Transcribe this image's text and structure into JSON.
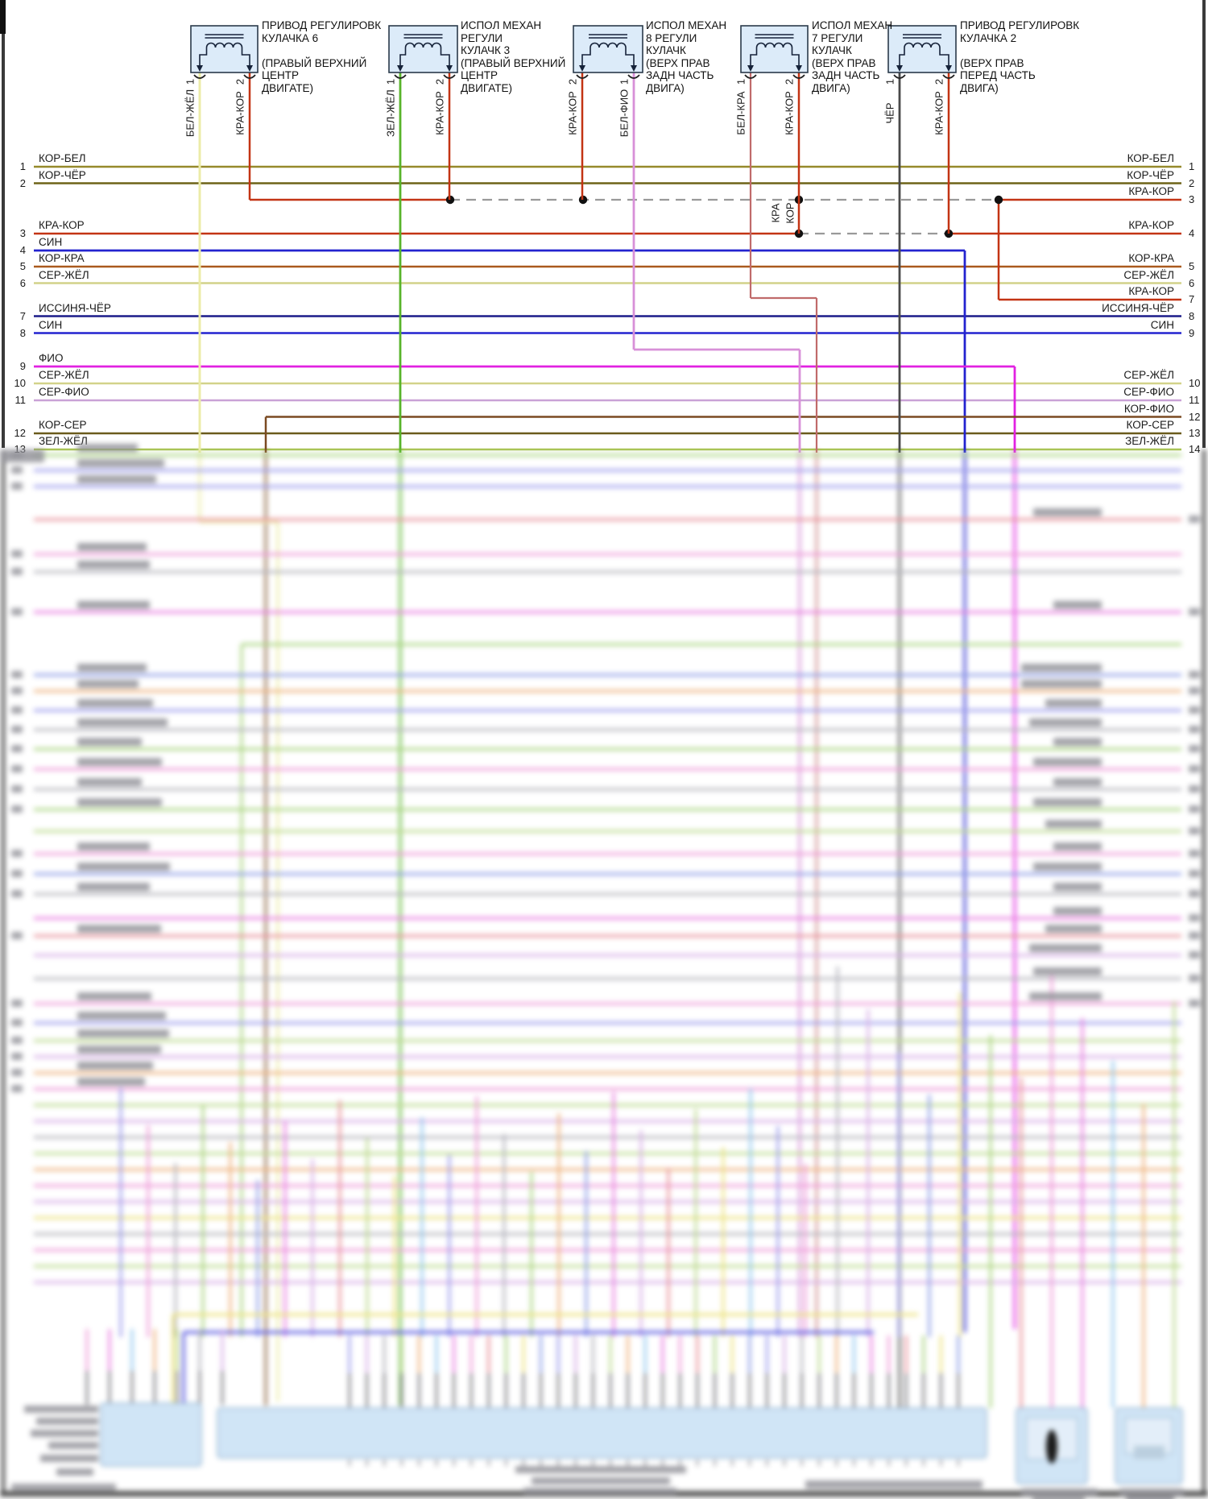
{
  "page": {
    "background": "#ffffff",
    "border_color": "#3a3a3a"
  },
  "connectors": [
    {
      "title_lines": [
        "ПРИВОД РЕГУЛИРОВК",
        "КУЛАЧКА 6",
        "",
        "(ПРАВЫЙ ВЕРХНИЙ",
        "ЦЕНТР",
        "ДВИГАТЕ)"
      ],
      "pins": [
        {
          "num": "1",
          "wire": "БЕЛ-ЖЁЛ"
        },
        {
          "num": "2",
          "wire": "КРА-КОР"
        }
      ]
    },
    {
      "title_lines": [
        "ИСПОЛ МЕХАН",
        "РЕГУЛИ",
        "КУЛАЧК 3",
        "(ПРАВЫЙ ВЕРХНИЙ",
        "ЦЕНТР",
        "ДВИГАТЕ)"
      ],
      "pins": [
        {
          "num": "1",
          "wire": "ЗЕЛ-ЖЁЛ"
        },
        {
          "num": "2",
          "wire": "КРА-КОР"
        }
      ]
    },
    {
      "title_lines": [
        "ИСПОЛ МЕХАН",
        "8 РЕГУЛИ",
        "КУЛАЧК",
        "(ВЕРХ ПРАВ",
        "ЗАДН ЧАСТЬ",
        "ДВИГА)"
      ],
      "pins": [
        {
          "num": "2",
          "wire": "КРА-КОР"
        },
        {
          "num": "1",
          "wire": "БЕЛ-ФИО"
        }
      ]
    },
    {
      "title_lines": [
        "ИСПОЛ МЕХАН",
        "7 РЕГУЛИ",
        "КУЛАЧК",
        "(ВЕРХ ПРАВ",
        "ЗАДН ЧАСТЬ",
        "ДВИГА)"
      ],
      "pins": [
        {
          "num": "1",
          "wire": "БЕЛ-КРА"
        },
        {
          "num": "2",
          "wire": "КРА-КОР"
        }
      ]
    },
    {
      "title_lines": [
        "ПРИВОД РЕГУЛИРОВК",
        "КУЛАЧКА 2",
        "",
        "(ВЕРХ ПРАВ",
        "ПЕРЕД ЧАСТЬ",
        "ДВИГА)"
      ],
      "pins": [
        {
          "num": "1",
          "wire": "ЧЁР"
        },
        {
          "num": "2",
          "wire": "КРА-КОР"
        }
      ]
    }
  ],
  "left_rows": [
    {
      "num": "1",
      "label": "КОР-БЕЛ",
      "color": "#968a2b"
    },
    {
      "num": "2",
      "label": "КОР-ЧЁР",
      "color": "#6e6418"
    },
    {
      "num": "3",
      "label": "КРА-КОР",
      "color": "#c33414"
    },
    {
      "num": "4",
      "label": "СИН",
      "color": "#2323cf"
    },
    {
      "num": "5",
      "label": "КОР-КРА",
      "color": "#aa5a1e"
    },
    {
      "num": "6",
      "label": "СЕР-ЖЁЛ",
      "color": "#d2d28a"
    },
    {
      "num": "7",
      "label": "ИССИНЯ-ЧЁР",
      "color": "#1c1c8a"
    },
    {
      "num": "8",
      "label": "СИН",
      "color": "#2323cf"
    },
    {
      "num": "9",
      "label": "ФИО",
      "color": "#e121e1"
    },
    {
      "num": "10",
      "label": "СЕР-ЖЁЛ",
      "color": "#d2d28a"
    },
    {
      "num": "11",
      "label": "СЕР-ФИО",
      "color": "#c9a2d6"
    },
    {
      "num": "12",
      "label": "КОР-СЕР",
      "color": "#6b5b1c"
    },
    {
      "num": "13",
      "label": "ЗЕЛ-ЖЁЛ",
      "color": "#a9c455"
    }
  ],
  "right_rows": [
    {
      "num": "1",
      "label": "КОР-БЕЛ",
      "color": "#968a2b"
    },
    {
      "num": "2",
      "label": "КОР-ЧЁР",
      "color": "#6e6418"
    },
    {
      "num": "3",
      "label": "КРА-КОР",
      "color": "#c33414"
    },
    {
      "num": "4",
      "label": "КРА-КОР",
      "color": "#c33414"
    },
    {
      "num": "5",
      "label": "КОР-КРА",
      "color": "#aa5a1e"
    },
    {
      "num": "6",
      "label": "СЕР-ЖЁЛ",
      "color": "#d2d28a"
    },
    {
      "num": "7",
      "label": "КРА-КОР",
      "color": "#c33414"
    },
    {
      "num": "8",
      "label": "ИССИНЯ-ЧЁР",
      "color": "#1c1c8a"
    },
    {
      "num": "9",
      "label": "СИН",
      "color": "#2323cf"
    },
    {
      "num": "10",
      "label": "СЕР-ЖЁЛ",
      "color": "#d2d28a"
    },
    {
      "num": "11",
      "label": "СЕР-ФИО",
      "color": "#c9a2d6"
    },
    {
      "num": "12",
      "label": "КОР-ФИО",
      "color": "#7a4a22"
    },
    {
      "num": "13",
      "label": "КОР-СЕР",
      "color": "#6b5b1c"
    },
    {
      "num": "14",
      "label": "ЗЕЛ-ЖЁЛ",
      "color": "#a9c455"
    }
  ],
  "inline_wire_label": {
    "line1": "КРА",
    "line2": "КОР"
  },
  "wire_colors": {
    "БЕЛ-ЖЁЛ": "#ececa8",
    "КРА-КОР": "#c33414",
    "ЗЕЛ-ЖЁЛ": "#58b42a",
    "БЕЛ-ФИО": "#d890d8",
    "БЕЛ-КРА": "#c06a6a",
    "ЧЁР": "#4a4a4a",
    "СИН": "#2323cf",
    "ФИО": "#e121e1",
    "КОР-ФИО": "#7a4a22",
    "dash": "#999999",
    "dot": "#111111",
    "connector_fill": "#dcebf9",
    "connector_stroke": "#2a3a4a"
  },
  "blur_region": {
    "palette": [
      "#9b9bec",
      "#ee9ad8",
      "#b4b4bc",
      "#a9d47f",
      "#eeb27d",
      "#8d9de6",
      "#e87ee0",
      "#d7aee6",
      "#e89098",
      "#bcd98e",
      "#ece27f",
      "#90c7ee"
    ],
    "rows": [
      [
        565,
        3,
        1,
        0
      ],
      [
        584,
        0,
        1,
        0
      ],
      [
        604,
        0,
        1,
        0
      ],
      [
        645,
        8,
        0,
        1
      ],
      [
        688,
        1,
        1,
        0
      ],
      [
        710,
        2,
        1,
        0
      ],
      [
        760,
        6,
        1,
        1
      ],
      [
        800,
        3,
        0,
        0
      ],
      [
        838,
        5,
        1,
        1
      ],
      [
        858,
        4,
        1,
        1
      ],
      [
        882,
        0,
        1,
        1
      ],
      [
        906,
        2,
        1,
        1
      ],
      [
        930,
        3,
        1,
        1
      ],
      [
        955,
        1,
        1,
        1
      ],
      [
        980,
        2,
        1,
        1
      ],
      [
        1005,
        3,
        1,
        1
      ],
      [
        1032,
        9,
        0,
        1
      ],
      [
        1060,
        1,
        1,
        1
      ],
      [
        1085,
        5,
        1,
        1
      ],
      [
        1110,
        2,
        1,
        1
      ],
      [
        1140,
        6,
        0,
        1
      ],
      [
        1162,
        8,
        1,
        1
      ],
      [
        1186,
        7,
        0,
        1
      ],
      [
        1215,
        2,
        0,
        1
      ],
      [
        1246,
        1,
        1,
        1
      ],
      [
        1270,
        0,
        1,
        0
      ],
      [
        1292,
        9,
        1,
        0
      ],
      [
        1312,
        7,
        1,
        0
      ],
      [
        1332,
        4,
        1,
        0
      ],
      [
        1352,
        1,
        1,
        0
      ],
      [
        1372,
        9,
        0,
        0
      ],
      [
        1392,
        7,
        0,
        0
      ],
      [
        1412,
        2,
        0,
        0
      ],
      [
        1432,
        9,
        0,
        0
      ],
      [
        1452,
        4,
        0,
        0
      ],
      [
        1472,
        1,
        0,
        0
      ],
      [
        1492,
        7,
        0,
        0
      ],
      [
        1512,
        10,
        0,
        0
      ],
      [
        1532,
        2,
        0,
        0
      ],
      [
        1552,
        1,
        0,
        0
      ],
      [
        1572,
        9,
        0,
        0
      ],
      [
        1592,
        7,
        0,
        0
      ]
    ],
    "block_fill": "#cfe4f6",
    "block_stroke": "#8aaccb"
  }
}
